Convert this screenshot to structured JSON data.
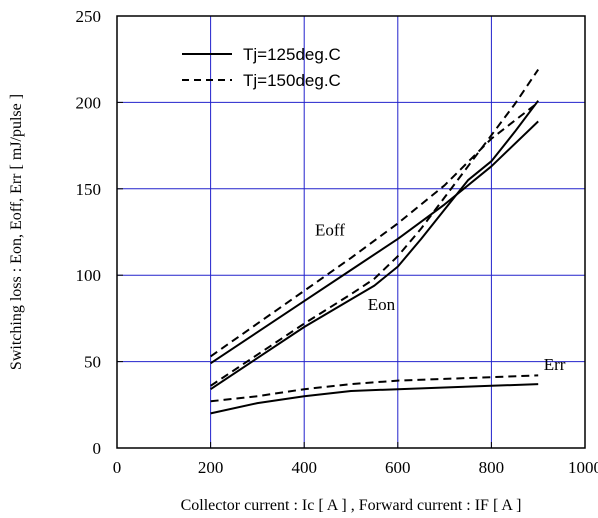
{
  "chart_data": {
    "type": "line",
    "xlabel": "Collector current : Ic [ A ] , Forward current : IF [ A ]",
    "ylabel": "Switching loss : Eon, Eoff, Err [ mJ/pulse ]",
    "xlim": [
      0,
      1000
    ],
    "ylim": [
      0,
      250
    ],
    "x_ticks": [
      0,
      200,
      400,
      600,
      800,
      1000
    ],
    "y_ticks": [
      0,
      50,
      100,
      150,
      200,
      250
    ],
    "x_tick_labels": [
      "0",
      "200",
      "400",
      "600",
      "800",
      "1000"
    ],
    "y_tick_labels": [
      "0",
      "50",
      "100",
      "150",
      "200",
      "250"
    ],
    "grid": true,
    "grid_color": "#2222cc",
    "legend_position": "top-left",
    "legend": [
      {
        "label": "Tj=125deg.C",
        "style": "solid"
      },
      {
        "label": "Tj=150deg.C",
        "style": "dashed"
      }
    ],
    "annotations": [
      {
        "text": "Eoff",
        "x": 455,
        "y": 123
      },
      {
        "text": "Eon",
        "x": 565,
        "y": 80
      },
      {
        "text": "Err",
        "x": 935,
        "y": 45
      }
    ],
    "series": [
      {
        "curve": "Eoff",
        "tj": "125",
        "style": "solid",
        "x": [
          200,
          300,
          400,
          500,
          600,
          700,
          800,
          900
        ],
        "y": [
          49,
          67,
          85,
          103,
          121,
          141,
          163,
          189
        ]
      },
      {
        "curve": "Eoff",
        "tj": "150",
        "style": "dashed",
        "x": [
          200,
          300,
          400,
          500,
          600,
          700,
          800,
          900
        ],
        "y": [
          53,
          72,
          91,
          110,
          130,
          152,
          179,
          200
        ]
      },
      {
        "curve": "Eon",
        "tj": "125",
        "style": "solid",
        "x": [
          200,
          300,
          400,
          500,
          550,
          600,
          650,
          700,
          750,
          800,
          850,
          900
        ],
        "y": [
          34,
          52,
          70,
          86,
          94,
          105,
          121,
          138,
          155,
          166,
          183,
          201
        ]
      },
      {
        "curve": "Eon",
        "tj": "150",
        "style": "dashed",
        "x": [
          200,
          300,
          400,
          500,
          550,
          600,
          650,
          700,
          750,
          800,
          850,
          900
        ],
        "y": [
          36,
          54,
          72,
          89,
          98,
          111,
          127,
          145,
          163,
          181,
          199,
          219
        ]
      },
      {
        "curve": "Err",
        "tj": "125",
        "style": "solid",
        "x": [
          200,
          300,
          400,
          500,
          600,
          700,
          800,
          900
        ],
        "y": [
          20,
          26,
          30,
          33,
          34,
          35,
          36,
          37
        ]
      },
      {
        "curve": "Err",
        "tj": "150",
        "style": "dashed",
        "x": [
          200,
          300,
          400,
          500,
          600,
          700,
          800,
          900
        ],
        "y": [
          27,
          30,
          34,
          37,
          39,
          40,
          41,
          42
        ]
      }
    ]
  }
}
